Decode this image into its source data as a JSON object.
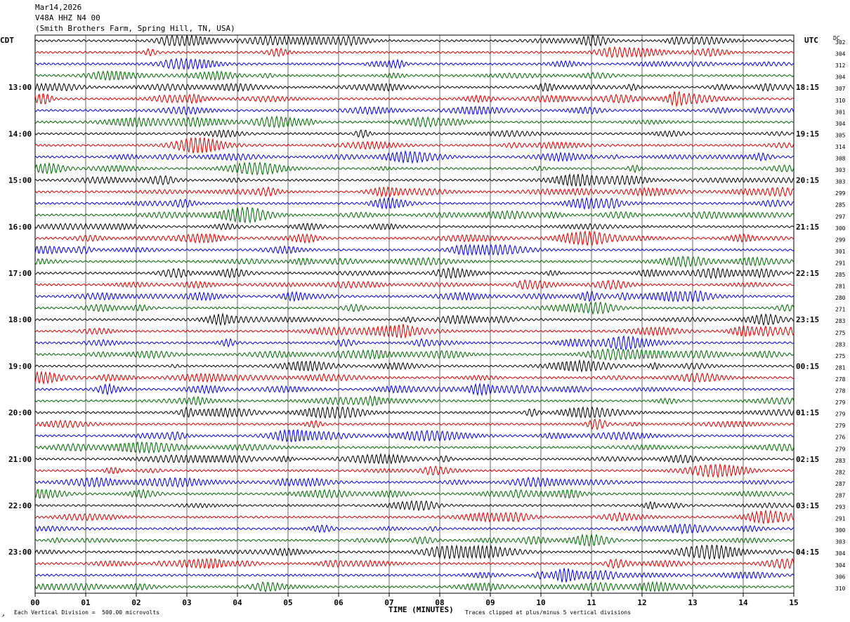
{
  "header": {
    "date": "Mar14,2026",
    "station": "V48A HHZ N4 00",
    "location": "(Smith Brothers Farm, Spring Hill, TN, USA)"
  },
  "left_axis_label": "CDT",
  "right_axis_label": "UTC",
  "dc_label": "DC",
  "footer": {
    "scale_note": "Each Vertical Division =  500.00 microvolts",
    "xlabel": "TIME (MINUTES)",
    "clip_note": "Traces clipped at plus/minus 5 vertical divisions",
    "corner_mark": "↗"
  },
  "chart_data": {
    "type": "line",
    "title": "Mar14,2026",
    "xlabel": "TIME (MINUTES)",
    "ylabel": "",
    "xlim": [
      0,
      15
    ],
    "x_ticks": [
      "00",
      "01",
      "02",
      "03",
      "04",
      "05",
      "06",
      "07",
      "08",
      "09",
      "10",
      "11",
      "12",
      "13",
      "14",
      "15"
    ],
    "left_hour_labels": [
      "13:00",
      "14:00",
      "15:00",
      "16:00",
      "17:00",
      "18:00",
      "19:00",
      "20:00",
      "21:00",
      "22:00",
      "23:00"
    ],
    "right_hour_labels": [
      "18:15",
      "19:15",
      "20:15",
      "21:15",
      "22:15",
      "23:15",
      "00:15",
      "01:15",
      "02:15",
      "03:15",
      "04:15"
    ],
    "trace_colors": [
      "#000000",
      "#cc0000",
      "#0000cc",
      "#006600"
    ],
    "trace_dc_offsets": [
      302,
      304,
      312,
      304,
      307,
      310,
      301,
      304,
      305,
      314,
      308,
      303,
      303,
      299,
      285,
      297,
      300,
      299,
      301,
      291,
      285,
      281,
      280,
      271,
      283,
      275,
      283,
      275,
      281,
      278,
      278,
      279,
      279,
      279,
      276,
      279,
      283,
      282,
      287,
      287,
      293,
      291,
      300,
      303,
      304,
      304,
      306,
      310
    ],
    "traces_per_hour": 4,
    "minutes_per_trace": 15,
    "grid": true
  }
}
